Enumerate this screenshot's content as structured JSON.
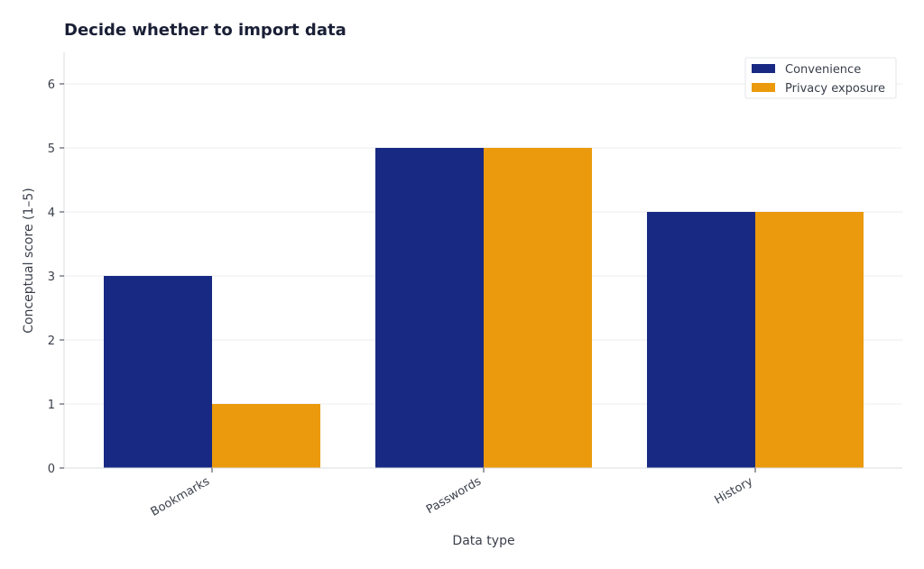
{
  "chart_data": {
    "type": "bar",
    "title": "Decide whether to import data",
    "xlabel": "Data type",
    "ylabel": "Conceptual score (1–5)",
    "categories": [
      "Bookmarks",
      "Passwords",
      "History"
    ],
    "series": [
      {
        "name": "Convenience",
        "values": [
          3,
          5,
          4
        ],
        "color": "#182983"
      },
      {
        "name": "Privacy exposure",
        "values": [
          1,
          5,
          4
        ],
        "color": "#ea9a0c"
      }
    ],
    "ylim": [
      0,
      6.5
    ],
    "yticks": [
      0,
      1,
      2,
      3,
      4,
      5,
      6
    ],
    "grid": true,
    "legend_position": "top-right"
  }
}
